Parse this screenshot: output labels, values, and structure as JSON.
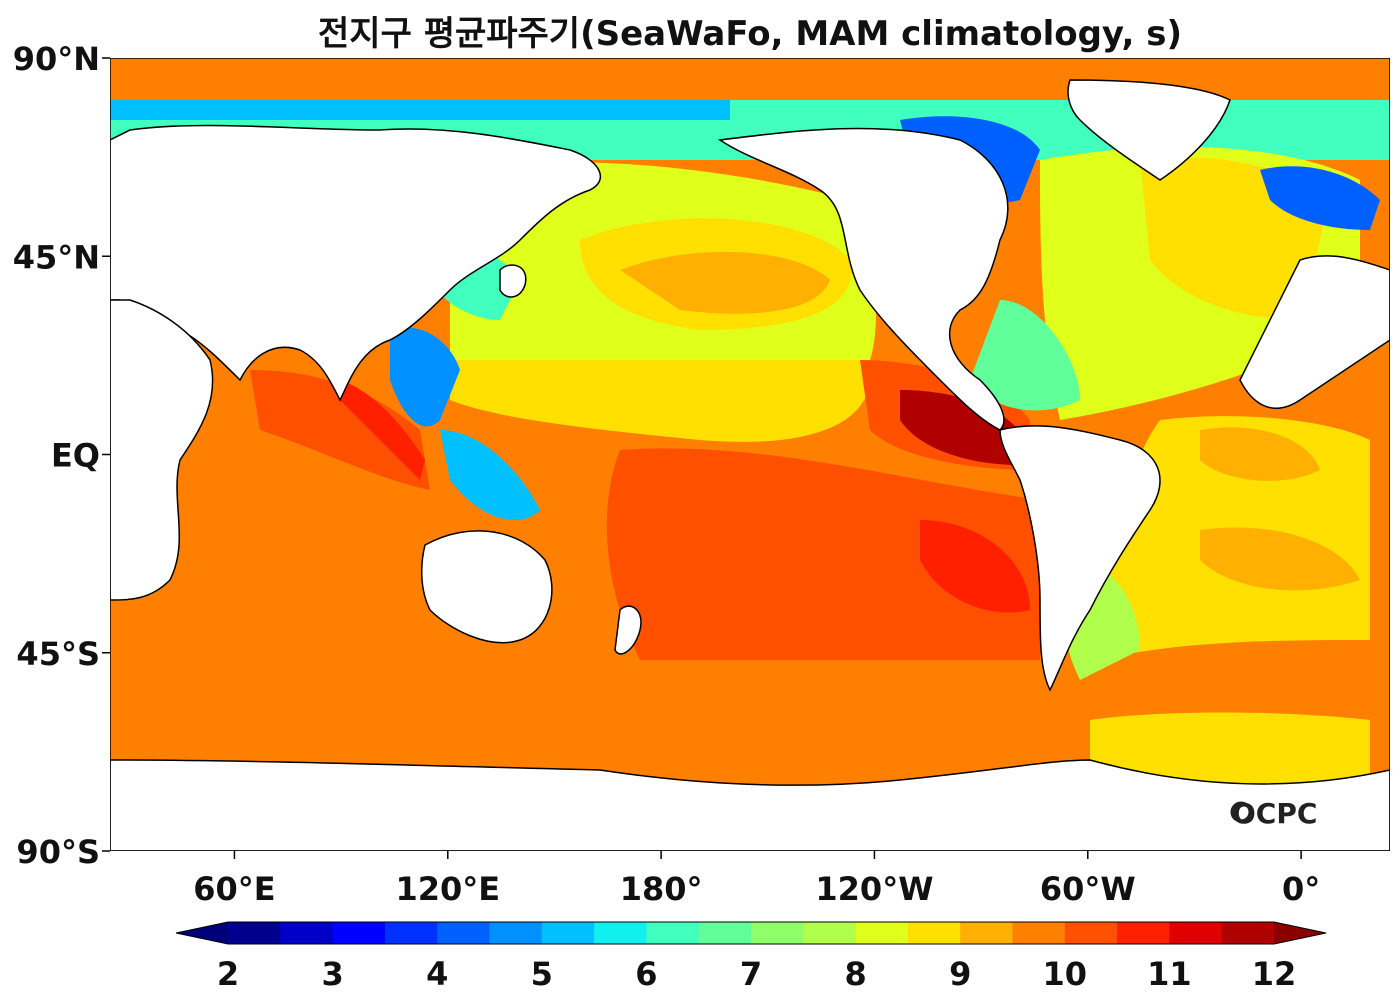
{
  "title": "전지구 평균파주기(SeaWaFo, MAM climatology, s)",
  "watermark": "OCPC",
  "lat_ticks": [
    "90°N",
    "45°N",
    "EQ",
    "45°S",
    "90°S"
  ],
  "lon_ticks": [
    "60°E",
    "120°E",
    "180°",
    "120°W",
    "60°W",
    "0°"
  ],
  "colorbar": {
    "min": 2,
    "max": 12,
    "step": 0.5,
    "tick_labels": [
      "2",
      "3",
      "4",
      "5",
      "6",
      "7",
      "8",
      "9",
      "10",
      "11",
      "12"
    ],
    "colors": [
      "#00008f",
      "#0000c8",
      "#0000ff",
      "#0030ff",
      "#0060ff",
      "#0090ff",
      "#00c0ff",
      "#10f0ee",
      "#40ffbf",
      "#60ff9a",
      "#8fff6a",
      "#b0ff4a",
      "#e0ff1a",
      "#ffe000",
      "#ffb000",
      "#ff8000",
      "#ff5000",
      "#ff2000",
      "#e00000",
      "#b00000"
    ],
    "under_color": "#00007a",
    "over_color": "#8a0000"
  },
  "chart_data": {
    "type": "heatmap",
    "variable": "mean wave period (s)",
    "xlim": [
      25,
      385
    ],
    "ylim": [
      -90,
      90
    ],
    "value_range": [
      2,
      12
    ]
  }
}
